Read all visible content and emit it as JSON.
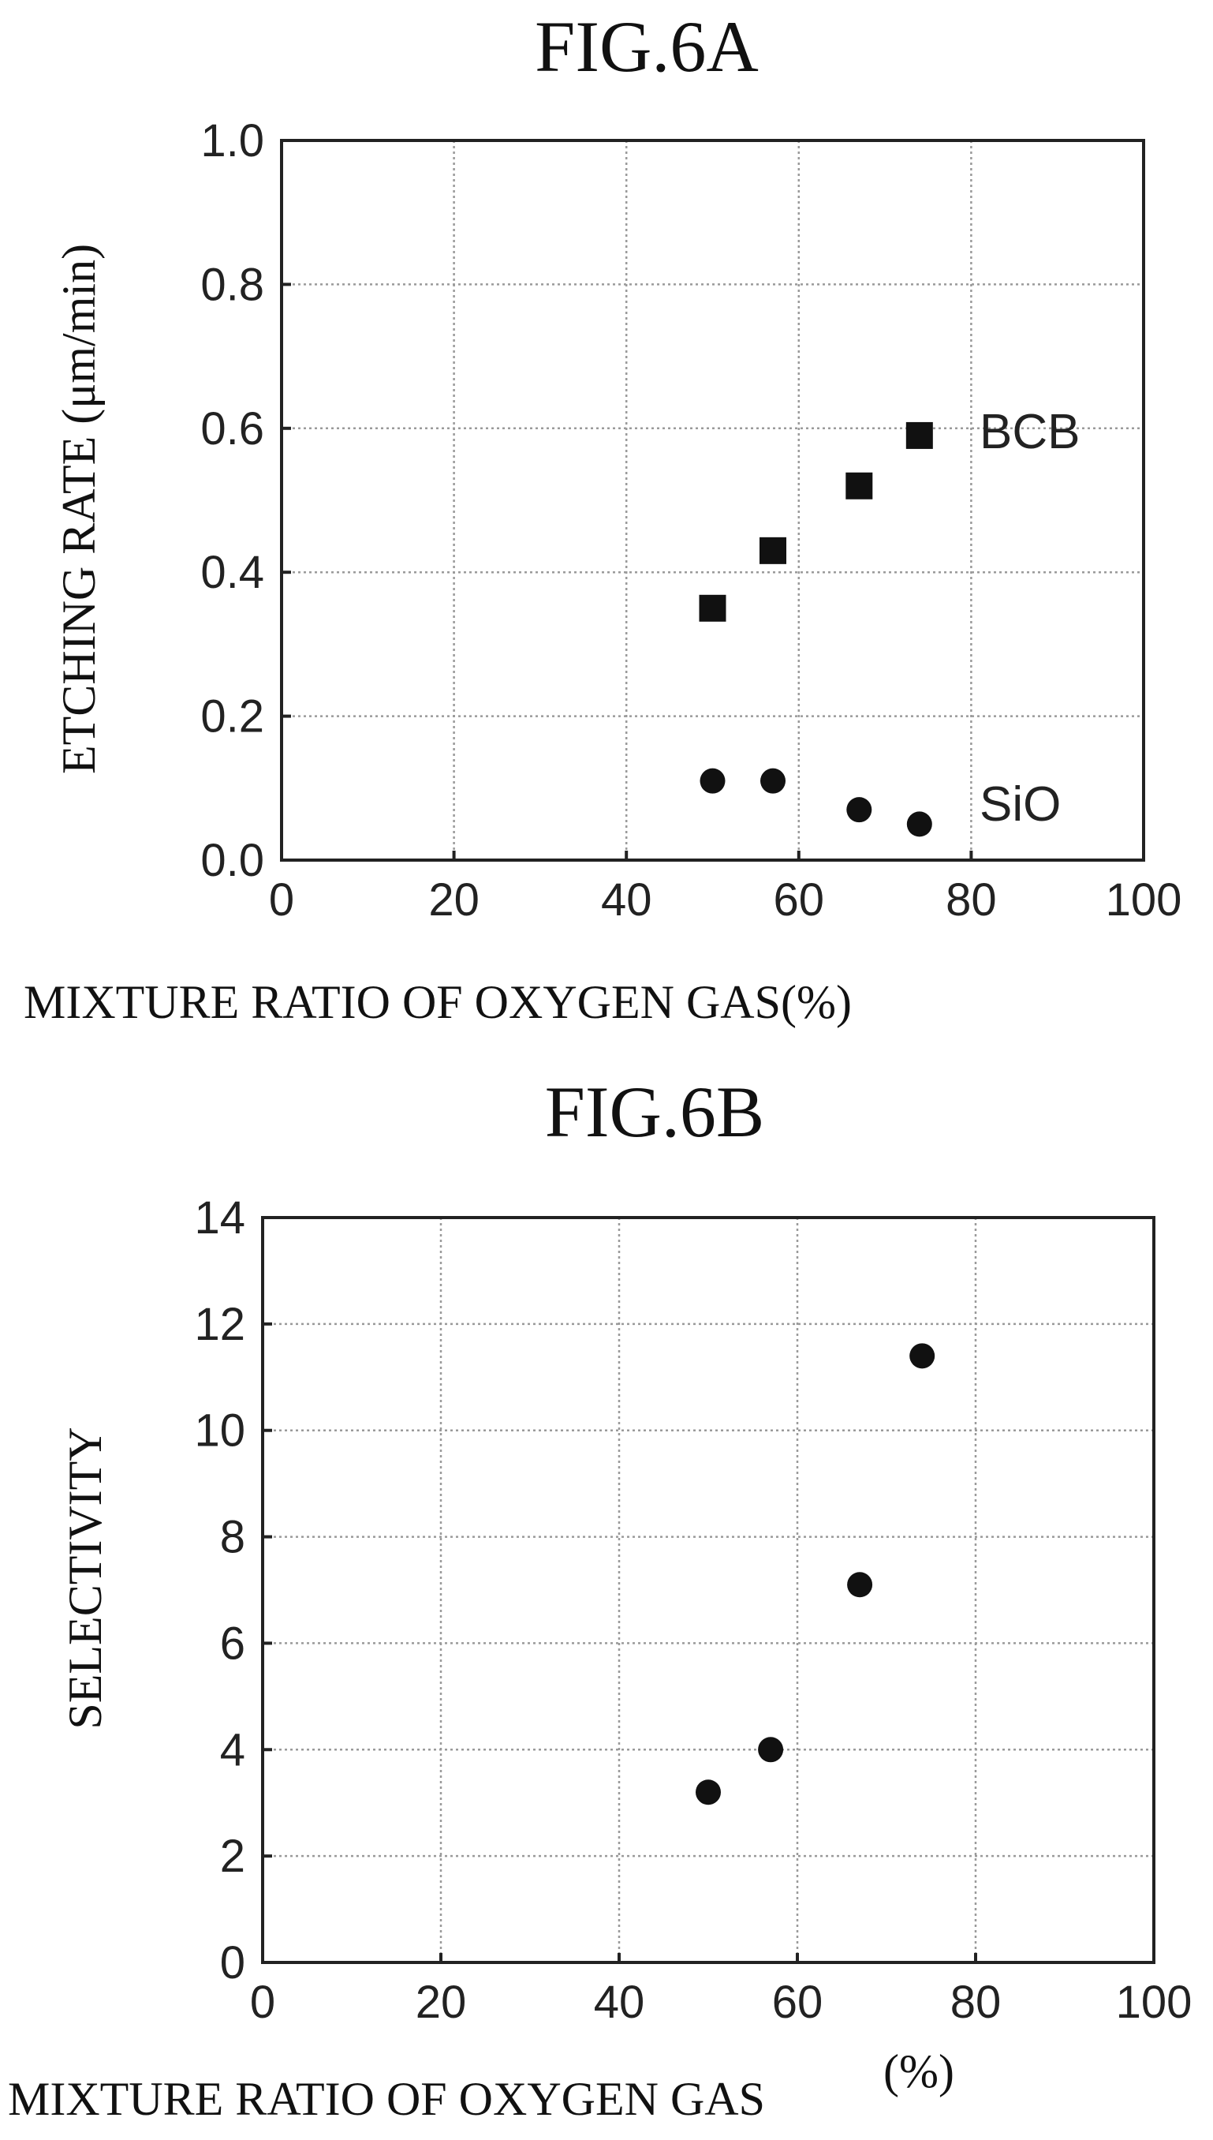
{
  "chart_data": [
    {
      "type": "scatter",
      "title": "FIG.6A",
      "xlabel": "MIXTURE RATIO OF OXYGEN GAS(%)",
      "ylabel": "ETCHING RATE (μm/min)",
      "xlim": [
        0,
        100
      ],
      "ylim": [
        0.0,
        1.0
      ],
      "xticks": [
        "0",
        "20",
        "40",
        "60",
        "80",
        "100"
      ],
      "yticks": [
        "0.0",
        "0.2",
        "0.4",
        "0.6",
        "0.8",
        "1.0"
      ],
      "grid": true,
      "series": [
        {
          "name": "BCB",
          "marker": "square",
          "color": "#111111",
          "points": [
            [
              50,
              0.35
            ],
            [
              57,
              0.43
            ],
            [
              67,
              0.52
            ],
            [
              74,
              0.59
            ]
          ]
        },
        {
          "name": "SiO",
          "marker": "circle",
          "color": "#111111",
          "points": [
            [
              50,
              0.11
            ],
            [
              57,
              0.11
            ],
            [
              67,
              0.07
            ],
            [
              74,
              0.05
            ]
          ]
        }
      ]
    },
    {
      "type": "scatter",
      "title": "FIG.6B",
      "xlabel": "MIXTURE RATIO OF OXYGEN GAS",
      "xlabel_unit": "(%)",
      "ylabel": "SELECTIVITY",
      "xlim": [
        0,
        100
      ],
      "ylim": [
        0,
        14
      ],
      "xticks": [
        "0",
        "20",
        "40",
        "60",
        "80",
        "100"
      ],
      "yticks": [
        "0",
        "2",
        "4",
        "6",
        "8",
        "10",
        "12",
        "14"
      ],
      "grid": true,
      "series": [
        {
          "name": "",
          "marker": "circle",
          "color": "#111111",
          "points": [
            [
              50,
              3.2
            ],
            [
              57,
              4.0
            ],
            [
              67,
              7.1
            ],
            [
              74,
              11.4
            ]
          ]
        }
      ]
    }
  ]
}
